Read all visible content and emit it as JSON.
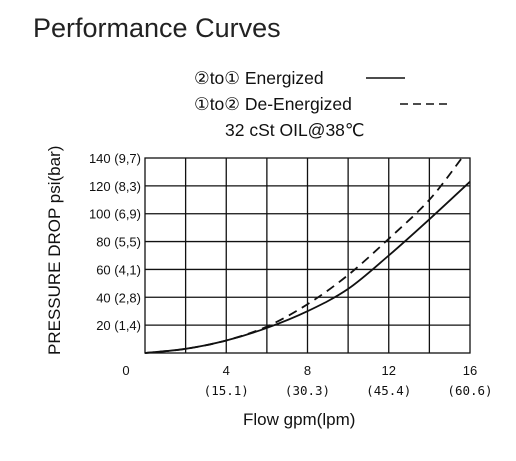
{
  "chart_data": {
    "type": "line",
    "title": "Performance Curves",
    "legend_lines": [
      "②to① Energized",
      "①to② De-Energized",
      "32 cSt OIL@38℃"
    ],
    "xlabel": "Flow gpm(lpm)",
    "ylabel": "PRESSURE DROP psi(bar)",
    "xlim": [
      0,
      16
    ],
    "ylim": [
      0,
      140
    ],
    "grid": true,
    "x_ticks": [
      {
        "value": 0,
        "label": "0",
        "sub": ""
      },
      {
        "value": 4,
        "label": "4",
        "sub": "(15.1)"
      },
      {
        "value": 8,
        "label": "8",
        "sub": "(30.3)"
      },
      {
        "value": 12,
        "label": "12",
        "sub": "(45.4)"
      },
      {
        "value": 16,
        "label": "16",
        "sub": "(60.6)"
      }
    ],
    "y_ticks": [
      {
        "value": 20,
        "label": "20 (1,4)"
      },
      {
        "value": 40,
        "label": "40 (2,8)"
      },
      {
        "value": 60,
        "label": "60 (4,1)"
      },
      {
        "value": 80,
        "label": "80 (5,5)"
      },
      {
        "value": 100,
        "label": "100 (6,9)"
      },
      {
        "value": 120,
        "label": "120 (8,3)"
      },
      {
        "value": 140,
        "label": "140 (9,7)"
      }
    ],
    "series": [
      {
        "name": "②to① Energized",
        "style": "solid",
        "color": "#111111",
        "points": [
          [
            0,
            0
          ],
          [
            2,
            3
          ],
          [
            4,
            9
          ],
          [
            6,
            18
          ],
          [
            8,
            30
          ],
          [
            10,
            46
          ],
          [
            12,
            70
          ],
          [
            14,
            96
          ],
          [
            16,
            123
          ]
        ]
      },
      {
        "name": "①to② De-Energized",
        "style": "dashed",
        "color": "#111111",
        "points": [
          [
            0,
            0
          ],
          [
            2,
            3
          ],
          [
            4,
            9
          ],
          [
            6,
            19
          ],
          [
            8,
            35
          ],
          [
            10,
            56
          ],
          [
            12,
            82
          ],
          [
            14,
            110
          ],
          [
            15.6,
            140
          ]
        ]
      }
    ]
  }
}
